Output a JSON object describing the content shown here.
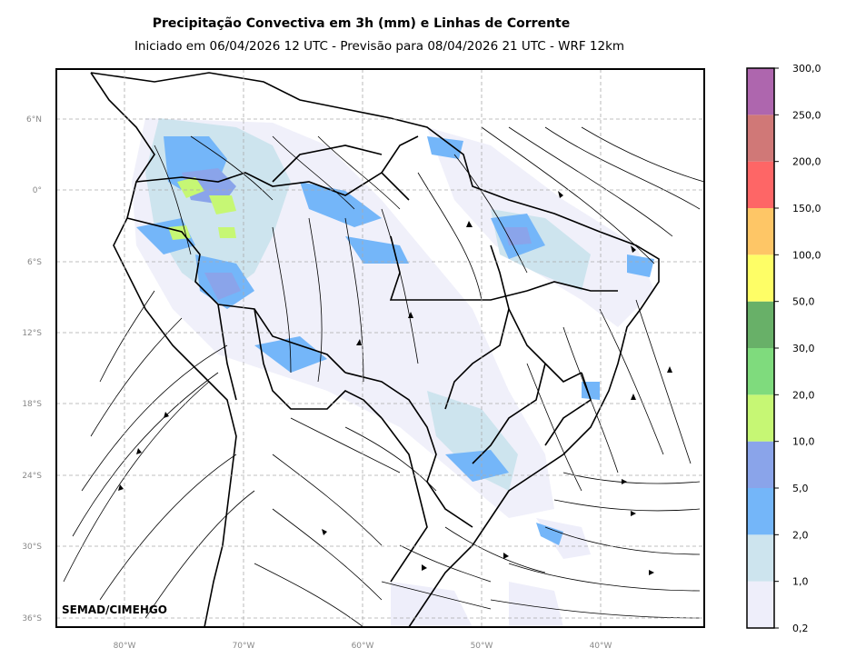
{
  "header": {
    "title": "Precipitação Convectiva em 3h (mm) e Linhas de Corrente",
    "subtitle": "Iniciado em 06/04/2026 12 UTC - Previsão para 08/04/2026 21 UTC - WRF 12km"
  },
  "map": {
    "credit": "SEMAD/CIMEHGO",
    "lat_labels": [
      "6°N",
      "0°",
      "6°S",
      "12°S",
      "18°S",
      "24°S",
      "30°S",
      "36°S"
    ],
    "lon_labels": [
      "80°W",
      "70°W",
      "60°W",
      "50°W",
      "40°W"
    ],
    "gridlines": "dashed gray",
    "content": "convective precipitation shading with black streamlines over South America"
  },
  "colorbar": {
    "labels": [
      "0,2",
      "1,0",
      "2,0",
      "5,0",
      "10,0",
      "20,0",
      "30,0",
      "50,0",
      "100,0",
      "150,0",
      "200,0",
      "250,0",
      "300,0"
    ],
    "colors": [
      "#eeeefa",
      "#cde4ee",
      "#74b6f9",
      "#8aa4ea",
      "#c6f774",
      "#7fdb7d",
      "#68b068",
      "#fefe66",
      "#fec666",
      "#fe6666",
      "#d07877",
      "#ae66ae"
    ]
  }
}
